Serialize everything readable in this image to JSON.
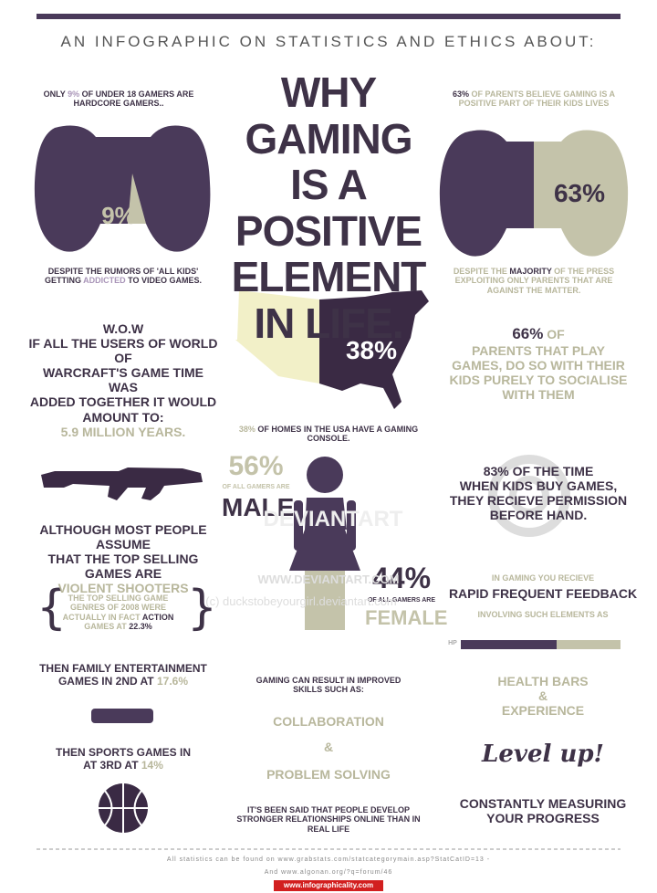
{
  "header": {
    "kicker": "AN INFOGRAPHIC  ON STATISTICS AND ETHICS ABOUT:",
    "title": [
      "WHY GAMING",
      "IS A POSITIVE",
      "ELEMENT",
      "IN LIFE."
    ]
  },
  "hardcore": {
    "stat": [
      "ONLY ",
      "9%",
      " OF UNDER 18 GAMERS ARE HARDCORE GAMERS.."
    ],
    "label": "9%",
    "caption": [
      "DESPITE THE RUMORS OF 'ALL KIDS' GETTING ",
      "ADDICTED",
      " TO VIDEO GAMES."
    ]
  },
  "parents": {
    "stat": [
      "63%",
      " OF PARENTS BELIEVE GAMING IS A POSITIVE PART OF THEIR KIDS LIVES"
    ],
    "label": "63%",
    "caption": [
      "DESPITE THE ",
      "MAJORITY",
      " OF THE PRESS EXPLOITING ONLY PARENTS THAT ARE AGAINST THE MATTER."
    ]
  },
  "usa": {
    "label": "38%",
    "caption": [
      "38%",
      " OF HOMES IN THE USA HAVE A GAMING CONSOLE."
    ]
  },
  "wow": {
    "lines": [
      "W.O.W",
      "IF ALL THE USERS OF WORLD OF",
      "WARCRAFT'S GAME TIME WAS",
      "ADDED TOGETHER IT WOULD",
      "AMOUNT TO:"
    ],
    "amount": "5.9 MILLION YEARS."
  },
  "socialise": {
    "stat": [
      "66%",
      " OF"
    ],
    "lines": [
      "PARENTS THAT PLAY",
      "GAMES, DO SO WITH THEIR",
      "KIDS PURELY TO SOCIALISE",
      "WITH THEM"
    ]
  },
  "shooters": {
    "lines": [
      "ALTHOUGH MOST PEOPLE ASSUME",
      "THAT THE TOP SELLING GAMES ARE"
    ],
    "highlight": "VIOLENT SHOOTERS"
  },
  "gender": {
    "male_pct": "56%",
    "male_sub": "OF ALL GAMERS ARE",
    "male": "MALE",
    "female_pct": "44%",
    "female_sub": "OF ALL GAMERS ARE",
    "female": "FEMALE"
  },
  "permission": {
    "stat": [
      "83%",
      " OF THE TIME"
    ],
    "lines": [
      "WHEN KIDS BUY GAMES,",
      "THEY RECIEVE PERMISSION",
      "BEFORE HAND."
    ]
  },
  "action": {
    "text": [
      "THE TOP SELLING GAME GENRES OF 2008 WERE ACTUALLY IN FACT ",
      "ACTION",
      " GAMES AT ",
      "22.3%"
    ]
  },
  "feedback": {
    "intro": "IN GAMING YOU RECIEVE",
    "title": "RAPID FREQUENT FEEDBACK",
    "sub": "INVOLVING SUCH ELEMENTS AS",
    "hp": "HP"
  },
  "family": {
    "text": [
      "THEN FAMILY ENTERTAINMENT GAMES IN 2ND AT ",
      "17.6%"
    ]
  },
  "skills": {
    "intro": "GAMING CAN RESULT IN IMPROVED SKILLS SUCH AS:",
    "items": [
      "COLLABORATION",
      "&",
      "PROBLEM SOLVING"
    ]
  },
  "progress": {
    "items": [
      "HEALTH BARS",
      "&",
      "EXPERIENCE"
    ],
    "levelup": "Level up!",
    "caption": "CONSTANTLY MEASURING YOUR PROGRESS"
  },
  "sports": {
    "text": [
      "THEN SPORTS GAMES IN AT 3RD AT ",
      "14%"
    ]
  },
  "online": {
    "text": "IT'S BEEN SAID THAT PEOPLE DEVELOP STRONGER RELATIONSHIPS ONLINE THAN IN REAL LIFE"
  },
  "watermark": {
    "brand": "DEVIANTART",
    "site": "WWW.DEVIANTART.COM",
    "credit": "(c) duckstobeyourgirl.deviantart.com"
  },
  "footer": {
    "line1": "All statistics can be found on www.grabstats.com/statcategorymain.asp?StatCatID=13 -",
    "line2": "And www.algonan.org/?q=forum/46",
    "source": "www.infographicality.com"
  }
}
